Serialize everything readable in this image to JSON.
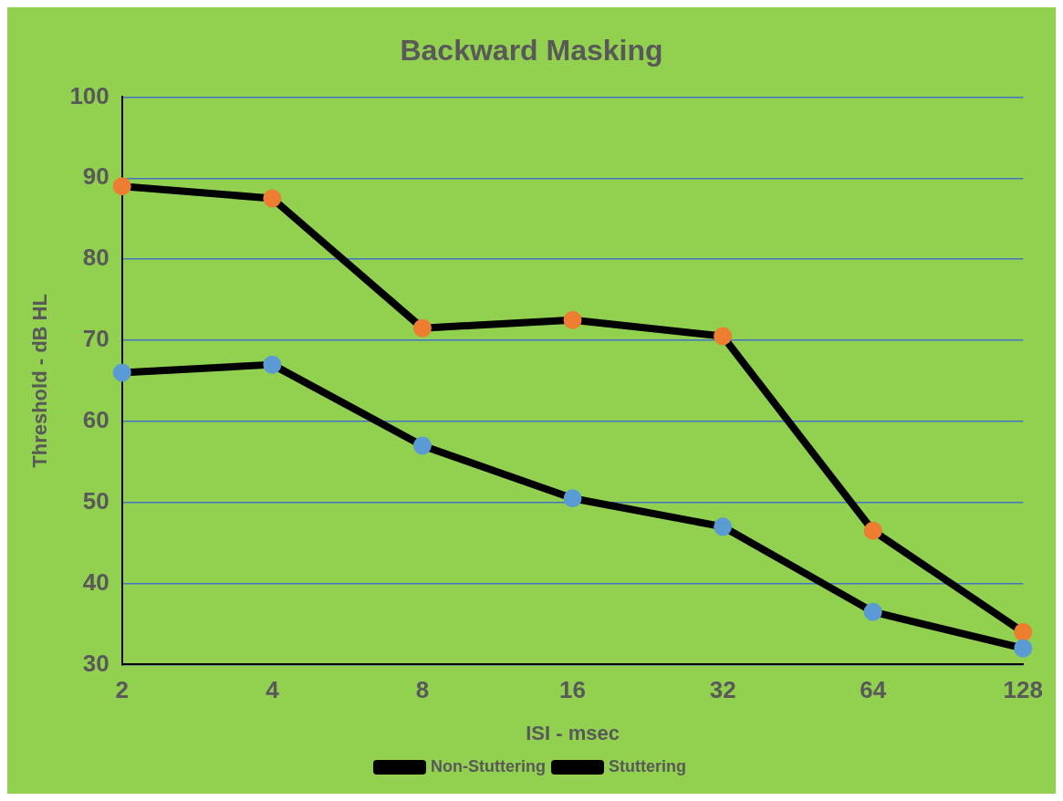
{
  "chart_data": {
    "type": "line",
    "title": "Backward Masking",
    "xlabel": "ISI - msec",
    "ylabel": "Threshold - dB HL",
    "categories": [
      "2",
      "4",
      "8",
      "16",
      "32",
      "64",
      "128"
    ],
    "series": [
      {
        "name": "Non-Stuttering",
        "color": "#5b9bd5",
        "values": [
          66,
          67,
          57,
          50.5,
          47,
          36.5,
          32
        ]
      },
      {
        "name": "Stuttering",
        "color": "#ed7d31",
        "values": [
          89,
          87.5,
          71.5,
          72.5,
          70.5,
          46.5,
          34
        ]
      }
    ],
    "ylim": [
      30,
      100
    ],
    "yticks": [
      30,
      40,
      50,
      60,
      70,
      80,
      90,
      100
    ],
    "grid": "y",
    "legend": "bottom",
    "marker": "circle",
    "line_style": "solid"
  }
}
